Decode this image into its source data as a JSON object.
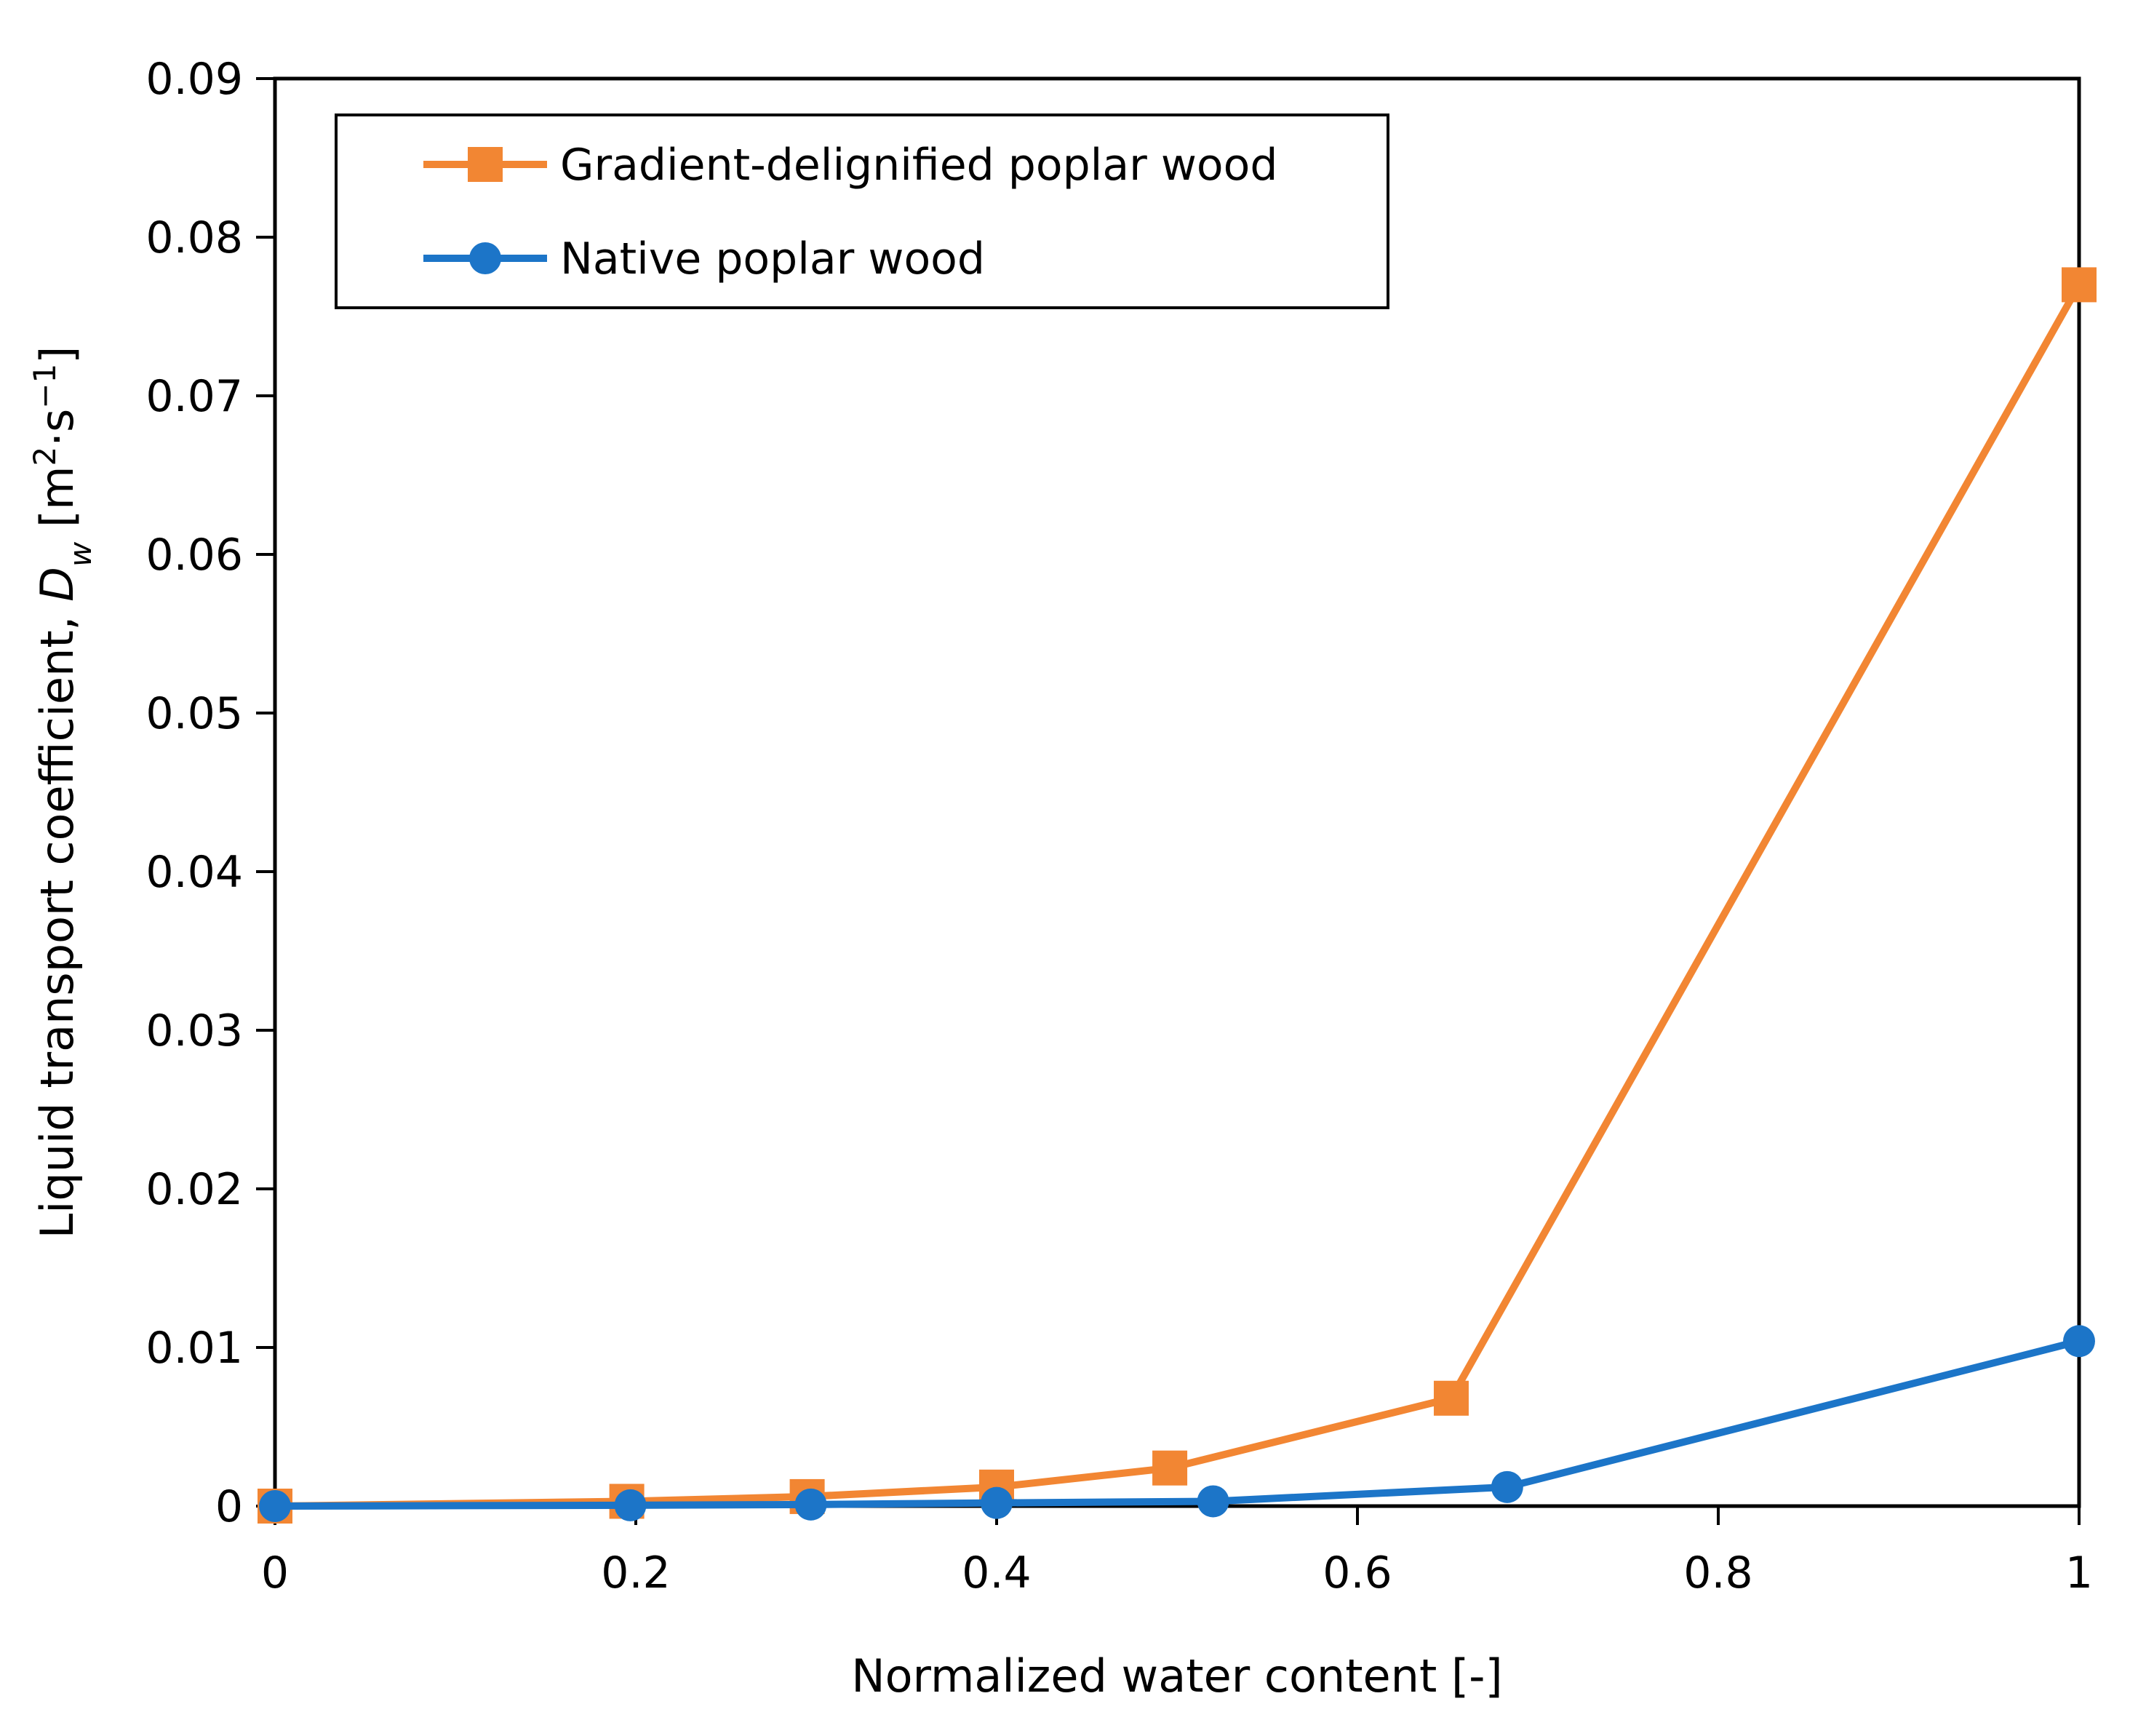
{
  "chart_data": {
    "type": "line",
    "xlabel": "Normalized water content [-]",
    "ylabel": {
      "prefix": "Liquid transport coefficient, ",
      "symbol": "D",
      "subscript": "w",
      "unit_open": " [m",
      "unit_sup1": "2",
      "unit_mid": "·s",
      "unit_sup2": "−1",
      "unit_close": "]"
    },
    "xlim": [
      0,
      1
    ],
    "ylim": [
      0,
      0.09
    ],
    "xticks": [
      0,
      0.2,
      0.4,
      0.6,
      0.8,
      1
    ],
    "xtick_labels": [
      "0",
      "0.2",
      "0.4",
      "0.6",
      "0.8",
      "1"
    ],
    "yticks": [
      0,
      0.01,
      0.02,
      0.03,
      0.04,
      0.05,
      0.06,
      0.07,
      0.08,
      0.09
    ],
    "ytick_labels": [
      "0",
      "0.01",
      "0.02",
      "0.03",
      "0.04",
      "0.05",
      "0.06",
      "0.07",
      "0.08",
      "0.09"
    ],
    "grid": false,
    "legend_position": "top-left",
    "series": [
      {
        "name": "Gradient-delignified poplar wood",
        "color": "#F28633",
        "marker": "square",
        "x": [
          0,
          0.195,
          0.295,
          0.4,
          0.496,
          0.652,
          1
        ],
        "y": [
          0,
          0.0003,
          0.0006,
          0.0012,
          0.0024,
          0.0068,
          0.077
        ]
      },
      {
        "name": "Native poplar wood",
        "color": "#1C75C8",
        "marker": "circle",
        "x": [
          0,
          0.197,
          0.297,
          0.4,
          0.52,
          0.683,
          1
        ],
        "y": [
          0,
          5e-05,
          0.0001,
          0.0002,
          0.0003,
          0.0012,
          0.0104
        ]
      }
    ]
  }
}
